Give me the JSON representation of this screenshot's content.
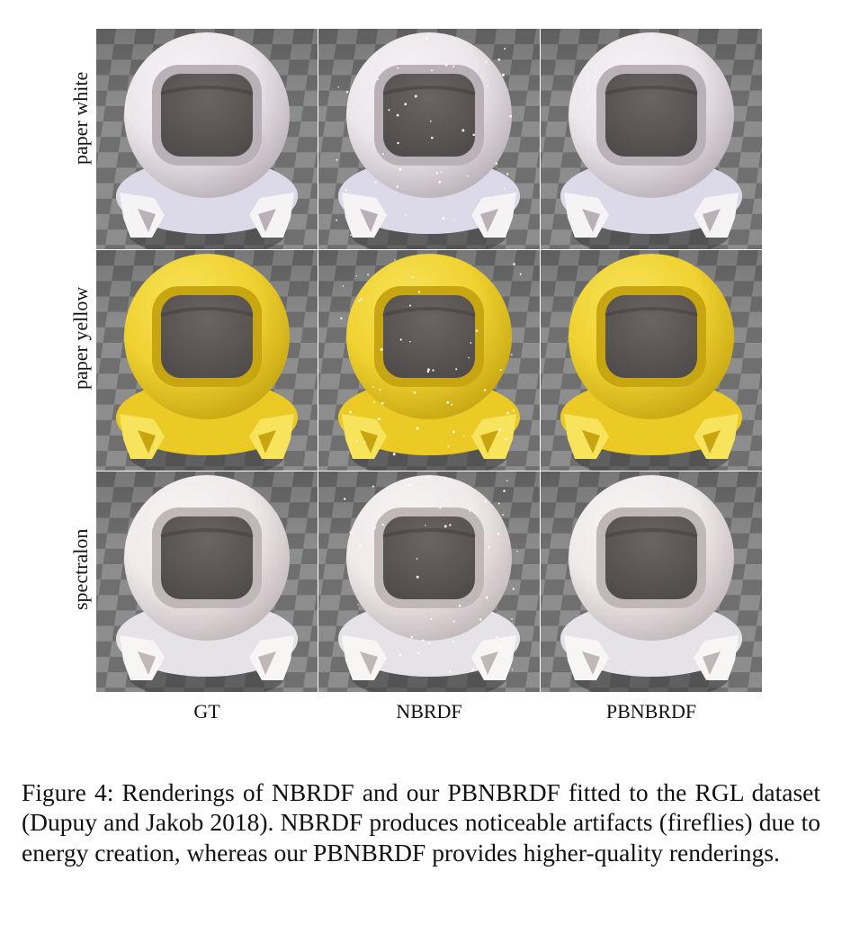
{
  "figure": {
    "rows": [
      {
        "label": "paper white",
        "color": "#ebe6ea",
        "shade": "#b9b0b8",
        "rim": "#f6f3f5",
        "flake": "#c9cbe8"
      },
      {
        "label": "paper yellow",
        "color": "#f0d230",
        "shade": "#c7a612",
        "rim": "#f7e35c",
        "flake": "#e4c21a"
      },
      {
        "label": "spectralon",
        "color": "#efe9ea",
        "shade": "#c0b7b9",
        "rim": "#f8f5f5",
        "flake": "#dcdce6"
      }
    ],
    "columns": [
      "GT",
      "NBRDF",
      "PBNBRDF"
    ],
    "caption": "Figure 4: Renderings of NBRDF and our PBNBRDF fitted to the RGL dataset (Dupuy and Jakob 2018). NBRDF produces noticeable artifacts (fireflies) due to energy creation, whereas our PBNBRDF provides higher-quality renderings."
  }
}
